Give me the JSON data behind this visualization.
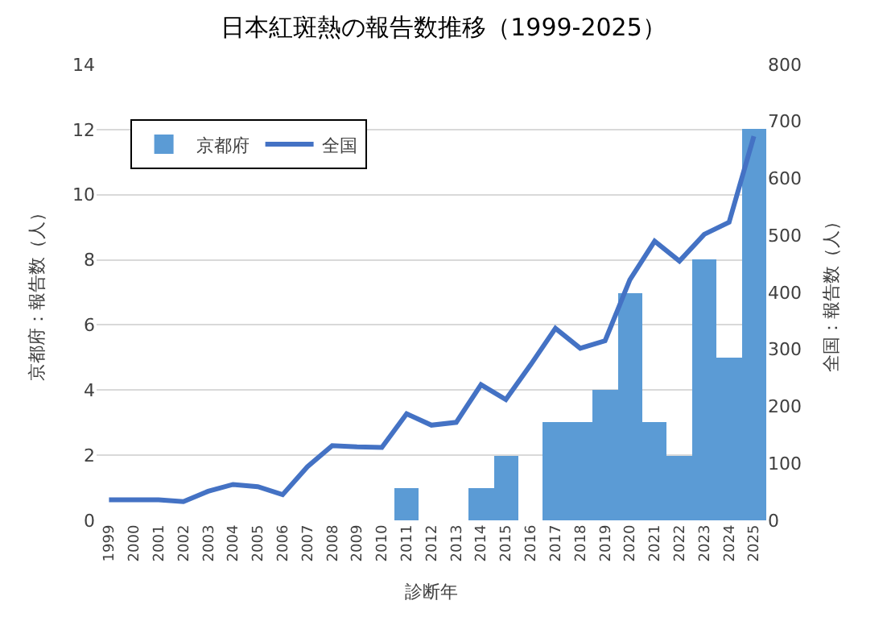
{
  "chart_data": {
    "type": "bar",
    "title": "日本紅斑熱の報告数推移（1999-2025）",
    "xlabel": "診断年",
    "ylabel": "京都府：報告数（人）",
    "y2label": "全国：報告数（人）",
    "categories": [
      "1999",
      "2000",
      "2001",
      "2002",
      "2003",
      "2004",
      "2005",
      "2006",
      "2007",
      "2008",
      "2009",
      "2010",
      "2011",
      "2012",
      "2013",
      "2014",
      "2015",
      "2016",
      "2017",
      "2018",
      "2019",
      "2020",
      "2021",
      "2022",
      "2023",
      "2024",
      "2025"
    ],
    "series": [
      {
        "name": "京都府",
        "color": "#5b9bd5",
        "values": [
          0,
          0,
          0,
          0,
          0,
          0,
          0,
          0,
          0,
          0,
          0,
          0,
          1,
          0,
          0,
          1,
          2,
          0,
          3,
          3,
          4,
          7,
          3,
          2,
          8,
          5,
          12
        ]
      },
      {
        "name": "全国",
        "type": "line",
        "axis": "y2",
        "color": "#4472c4",
        "values": [
          36,
          36,
          36,
          33,
          51,
          63,
          59,
          45,
          94,
          131,
          129,
          128,
          187,
          167,
          172,
          238,
          212,
          273,
          337,
          302,
          315,
          422,
          490,
          455,
          502,
          523,
          674
        ]
      }
    ],
    "ylim": [
      0,
      14
    ],
    "yticks": [
      0,
      2,
      4,
      6,
      8,
      10,
      12,
      14
    ],
    "y2lim": [
      0,
      800
    ],
    "y2ticks": [
      0,
      100,
      200,
      300,
      400,
      500,
      600,
      700,
      800
    ],
    "grid": "y",
    "legend": "top left",
    "marker": "none",
    "line_style": "solid"
  }
}
